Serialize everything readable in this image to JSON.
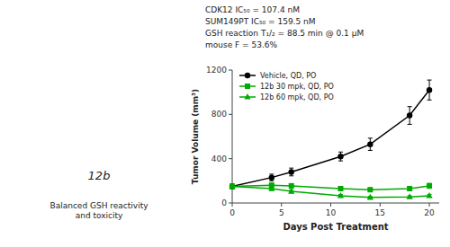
{
  "chart_data": {
    "type": "line",
    "annotations": [
      "CDK12 IC₅₀ = 107.4 nM",
      "SUM149PT IC₅₀ = 159.5 nM",
      "GSH reaction T₁/₂ = 88.5 min @ 0.1 μM",
      "mouse F = 53.6%",
      "12b",
      "Balanced GSH reactivity\nand toxicity"
    ],
    "x_label": "Days Post Treatment",
    "y_label": "Tumor Volume (mm³)",
    "x": [
      0,
      4,
      6,
      11,
      14,
      18,
      20
    ],
    "series": [
      {
        "name": "Vehicle, QD, PO",
        "color": "#000000",
        "marker": "circle",
        "values": [
          150,
          230,
          280,
          420,
          530,
          790,
          1020
        ],
        "errors": [
          20,
          30,
          35,
          40,
          55,
          80,
          90
        ]
      },
      {
        "name": "12b 30 mpk, QD, PO",
        "color": "#00aa00",
        "marker": "square",
        "values": [
          150,
          160,
          155,
          130,
          120,
          130,
          155
        ],
        "errors": [
          18,
          20,
          18,
          18,
          15,
          18,
          22
        ]
      },
      {
        "name": "12b 60 mpk, QD, PO",
        "color": "#00aa00",
        "marker": "triangle",
        "values": [
          150,
          130,
          105,
          65,
          50,
          55,
          65
        ],
        "errors": [
          18,
          18,
          15,
          12,
          10,
          10,
          12
        ]
      }
    ],
    "xlim": [
      0,
      21
    ],
    "xticks": [
      0,
      5,
      10,
      15,
      20
    ],
    "ylim": [
      0,
      1200
    ],
    "yticks": [
      0,
      400,
      800,
      1200
    ],
    "grid": false,
    "legend": "upper left"
  }
}
